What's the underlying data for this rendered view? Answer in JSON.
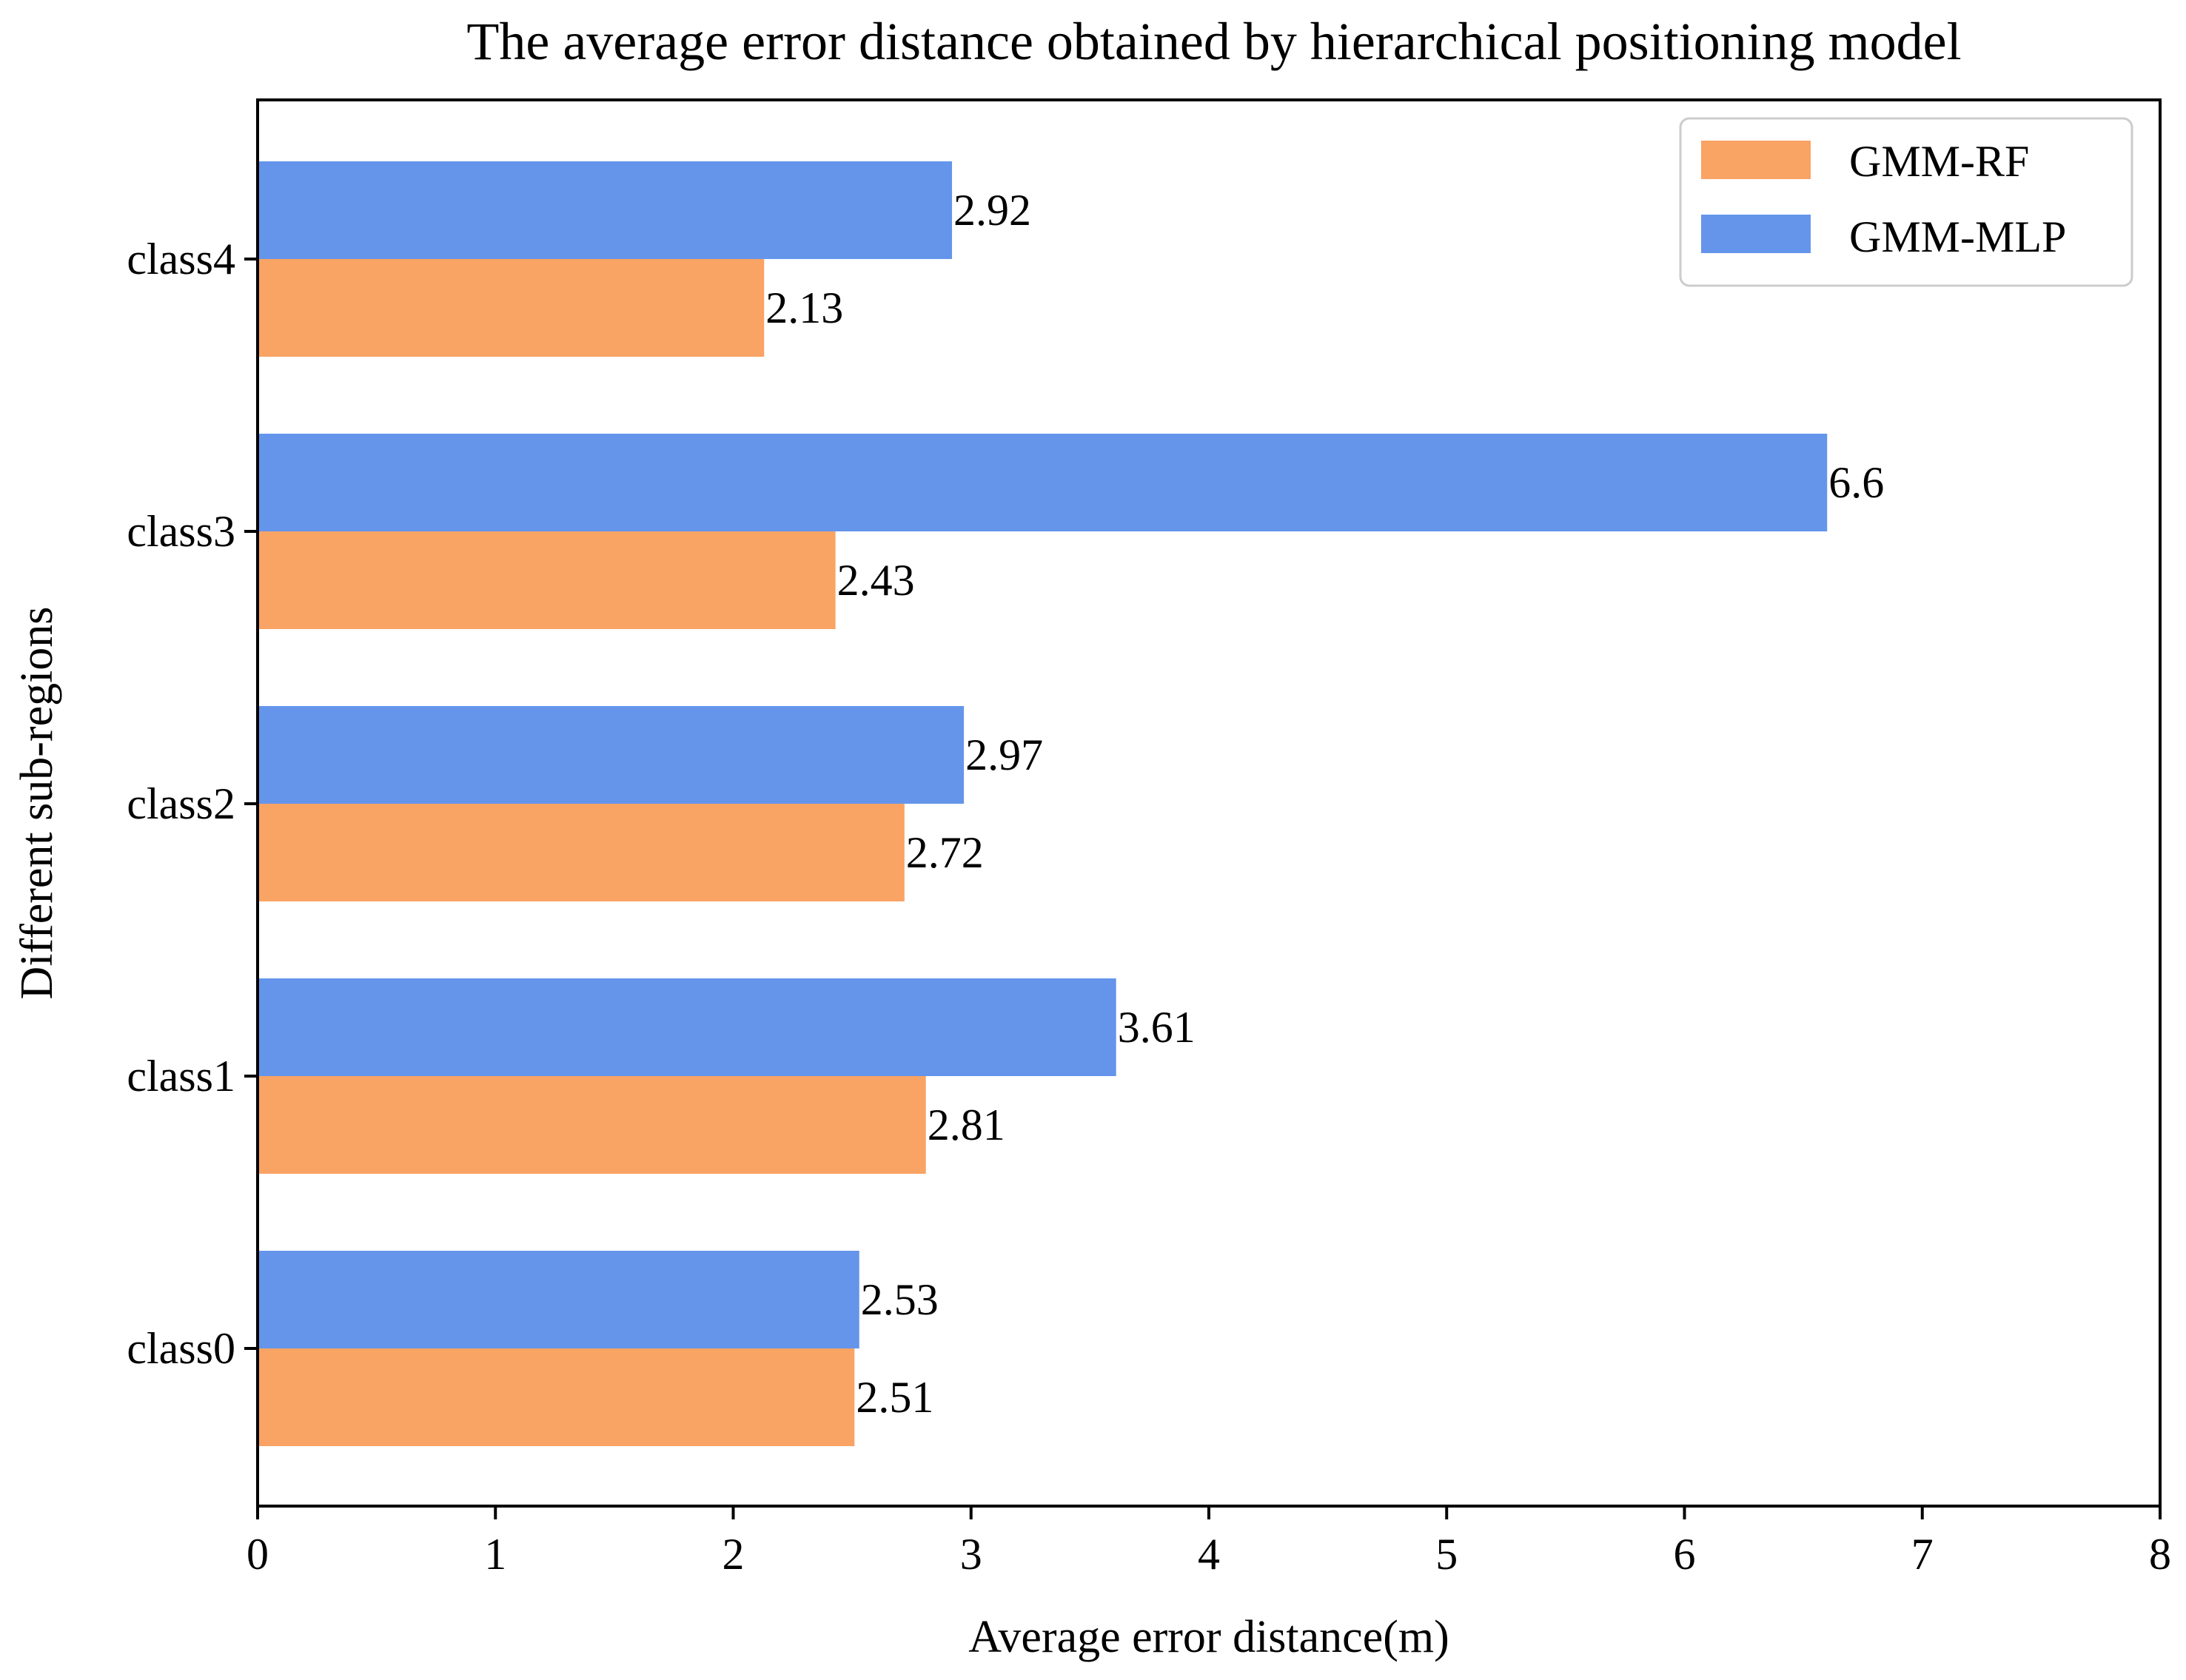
{
  "chart_data": {
    "type": "bar",
    "orientation": "horizontal",
    "title": "The average error distance obtained by hierarchical positioning model",
    "xlabel": "Average error distance(m)",
    "ylabel": "Different sub-regions",
    "categories": [
      "class0",
      "class1",
      "class2",
      "class3",
      "class4"
    ],
    "xlim": [
      0,
      8
    ],
    "xticks": [
      "0",
      "1",
      "2",
      "3",
      "4",
      "5",
      "6",
      "7",
      "8"
    ],
    "grid": false,
    "legend_position": "top-right",
    "series": [
      {
        "name": "GMM-RF",
        "color": "#F9A364",
        "values": [
          2.51,
          2.81,
          2.72,
          2.43,
          2.13
        ],
        "labels": [
          "2.51",
          "2.81",
          "2.72",
          "2.43",
          "2.13"
        ]
      },
      {
        "name": "GMM-MLP",
        "color": "#6495EB",
        "values": [
          2.53,
          3.61,
          2.97,
          6.6,
          2.92
        ],
        "labels": [
          "2.53",
          "3.61",
          "2.97",
          "6.6",
          "2.92"
        ]
      }
    ]
  }
}
